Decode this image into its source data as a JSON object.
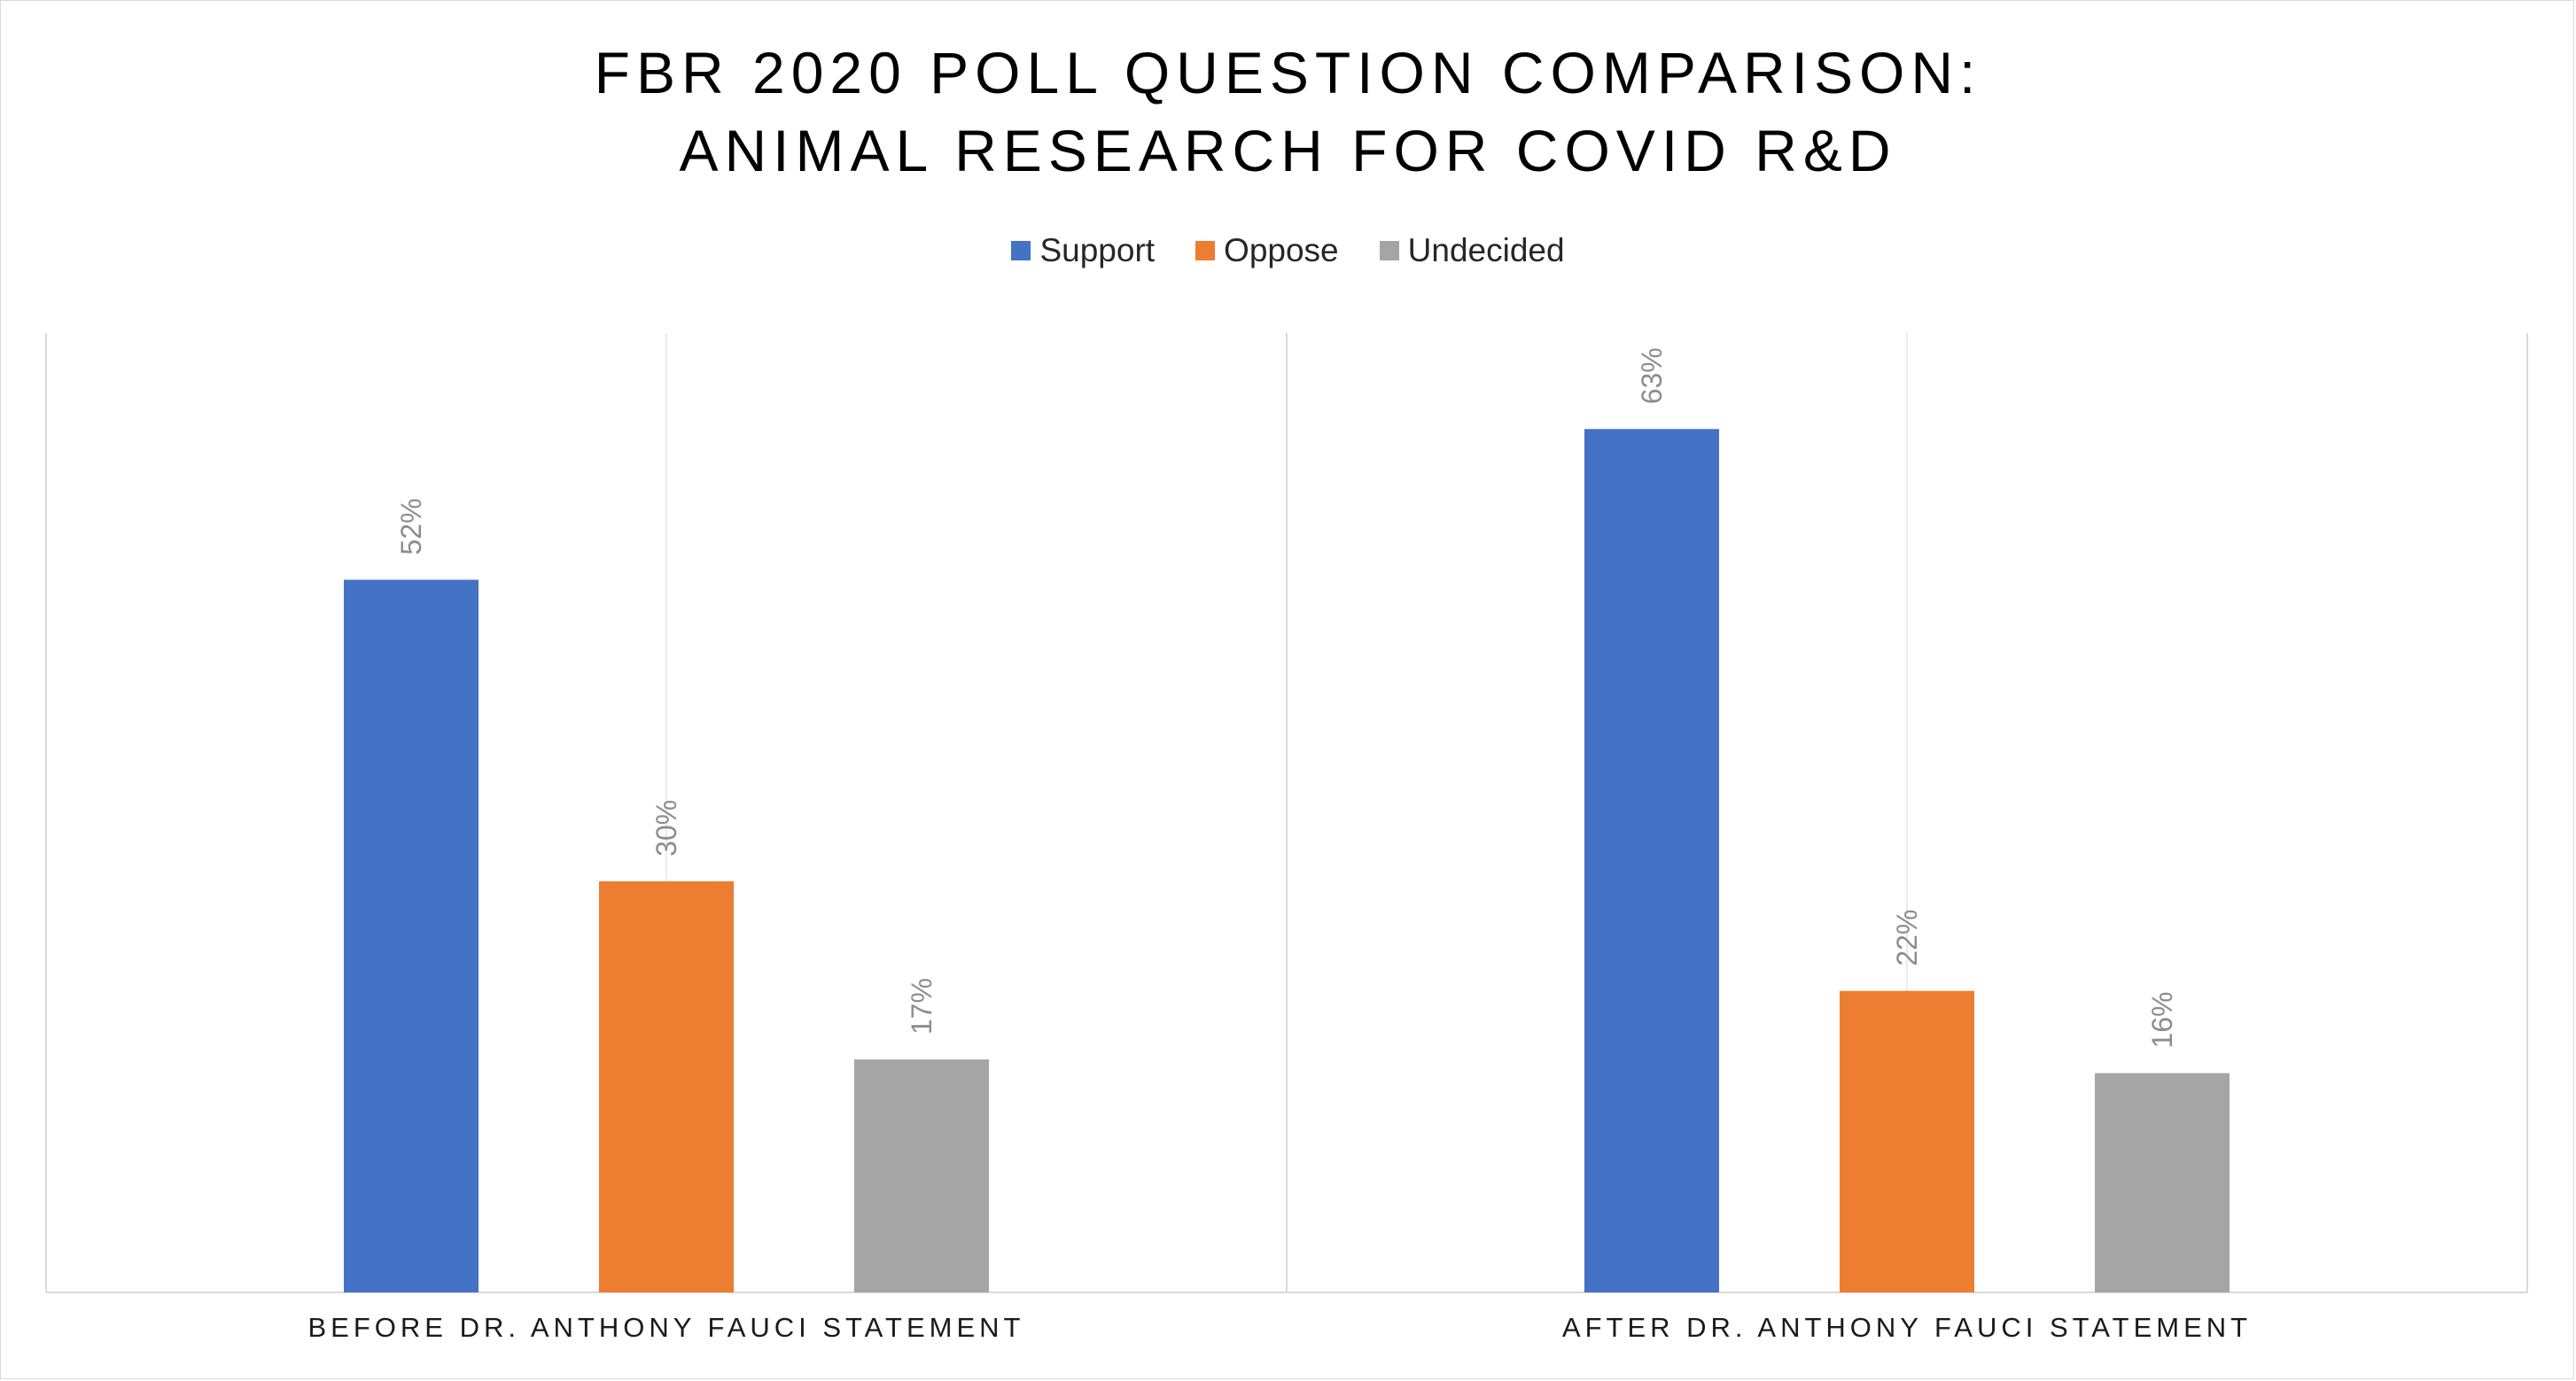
{
  "chart_data": {
    "type": "bar",
    "title_lines": [
      "FBR 2020 POLL QUESTION COMPARISON:",
      "ANIMAL RESEARCH FOR COVID R&D"
    ],
    "categories": [
      "BEFORE DR. ANTHONY FAUCI STATEMENT",
      "AFTER DR. ANTHONY FAUCI STATEMENT"
    ],
    "series": [
      {
        "name": "Support",
        "color": "#4472c4",
        "values": [
          52,
          63
        ],
        "labels": [
          "52%",
          "63%"
        ]
      },
      {
        "name": "Oppose",
        "color": "#ed7d31",
        "values": [
          30,
          22
        ],
        "labels": [
          "30%",
          "22%"
        ]
      },
      {
        "name": "Undecided",
        "color": "#a5a5a5",
        "values": [
          17,
          16
        ],
        "labels": [
          "17%",
          "16%"
        ]
      }
    ],
    "ylim": [
      0,
      70
    ],
    "xlabel": "",
    "ylabel": "",
    "grid": true,
    "legend_position": "top-center"
  }
}
